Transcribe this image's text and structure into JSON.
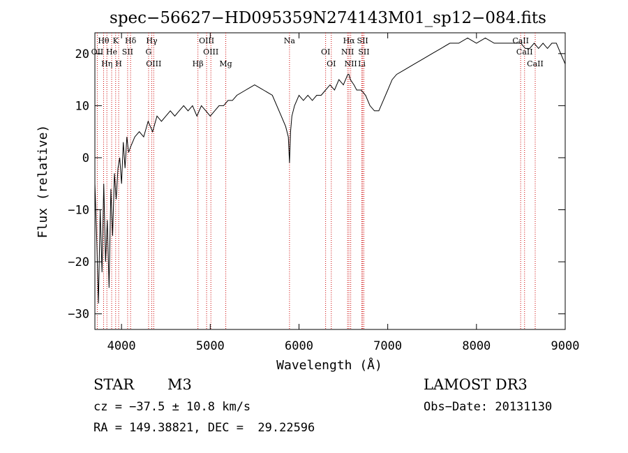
{
  "chart_data": {
    "type": "line",
    "title": "spec−56627−HD095359N274143M01_sp12−084.fits",
    "xlabel": "Wavelength (Å)",
    "ylabel": "Flux (relative)",
    "xlim": [
      3700,
      9000
    ],
    "ylim": [
      -33,
      24
    ],
    "xticks": [
      4000,
      5000,
      6000,
      7000,
      8000,
      9000
    ],
    "xtick_labels": [
      "4000",
      "5000",
      "6000",
      "7000",
      "8000",
      "9000"
    ],
    "yticks": [
      -30,
      -20,
      -10,
      0,
      10,
      20
    ],
    "ytick_labels": [
      "−30",
      "−20",
      "−10",
      "0",
      "10",
      "20"
    ],
    "grid": false,
    "line_color": "#000000",
    "marker_color": "#cc0000",
    "series": [
      {
        "x": [
          3700,
          3720,
          3740,
          3760,
          3780,
          3800,
          3820,
          3840,
          3860,
          3880,
          3900,
          3920,
          3940,
          3960,
          3980,
          4000,
          4020,
          4040,
          4060,
          4080,
          4100,
          4150,
          4200,
          4250,
          4300,
          4350,
          4400,
          4450,
          4500,
          4550,
          4600,
          4650,
          4700,
          4750,
          4800,
          4850,
          4900,
          4950,
          5000,
          5050,
          5100,
          5150,
          5200,
          5250,
          5300,
          5400,
          5500,
          5600,
          5700,
          5800,
          5850,
          5880,
          5893,
          5905,
          5920,
          5950,
          6000,
          6050,
          6100,
          6150,
          6200,
          6250,
          6300,
          6350,
          6400,
          6450,
          6500,
          6550,
          6563,
          6580,
          6620,
          6650,
          6700,
          6750,
          6800,
          6850,
          6900,
          6950,
          7000,
          7050,
          7100,
          7200,
          7300,
          7400,
          7500,
          7600,
          7700,
          7800,
          7900,
          8000,
          8100,
          8200,
          8300,
          8400,
          8500,
          8550,
          8600,
          8650,
          8700,
          8750,
          8800,
          8850,
          8900,
          8950,
          9000
        ],
        "y": [
          -5,
          -15,
          -28,
          -10,
          -22,
          -5,
          -20,
          -12,
          -25,
          -6,
          -15,
          -3,
          -8,
          -2,
          0,
          -5,
          3,
          -2,
          4,
          1,
          2,
          4,
          5,
          4,
          7,
          5,
          8,
          7,
          8,
          9,
          8,
          9,
          10,
          9,
          10,
          8,
          10,
          9,
          8,
          9,
          10,
          10,
          11,
          11,
          12,
          13,
          14,
          13,
          12,
          8,
          6,
          4,
          -1,
          5,
          8,
          10,
          12,
          11,
          12,
          11,
          12,
          12,
          13,
          14,
          13,
          15,
          14,
          16,
          16,
          15,
          14,
          13,
          13,
          12,
          10,
          9,
          9,
          11,
          13,
          15,
          16,
          17,
          18,
          19,
          20,
          21,
          22,
          22,
          23,
          22,
          23,
          22,
          22,
          22,
          22,
          21,
          21,
          22,
          21,
          22,
          21,
          22,
          22,
          20,
          18
        ]
      }
    ],
    "lines": [
      {
        "label": "Hθ",
        "x": 3798
      },
      {
        "label": "OII",
        "x": 3727
      },
      {
        "label": "Hη",
        "x": 3835
      },
      {
        "label": "K",
        "x": 3934
      },
      {
        "label": "He",
        "x": 3889
      },
      {
        "label": "H",
        "x": 3968
      },
      {
        "label": "Hδ",
        "x": 4102
      },
      {
        "label": "SII",
        "x": 4069
      },
      {
        "label": "OIII",
        "x": 4363
      },
      {
        "label": "Hγ",
        "x": 4341
      },
      {
        "label": "G",
        "x": 4305
      },
      {
        "label": "Hβ",
        "x": 4861
      },
      {
        "label": "OIII",
        "x": 4959
      },
      {
        "label": "OIII",
        "x": 5007
      },
      {
        "label": "Mg",
        "x": 5175
      },
      {
        "label": "Na",
        "x": 5893
      },
      {
        "label": "OI",
        "x": 6300
      },
      {
        "label": "OI",
        "x": 6364
      },
      {
        "label": "Hα",
        "x": 6563
      },
      {
        "label": "NII",
        "x": 6548
      },
      {
        "label": "NII",
        "x": 6583
      },
      {
        "label": "SII",
        "x": 6717
      },
      {
        "label": "SII",
        "x": 6731
      },
      {
        "label": "Li",
        "x": 6708
      },
      {
        "label": "CaII",
        "x": 8498
      },
      {
        "label": "CaII",
        "x": 8542
      },
      {
        "label": "CaII",
        "x": 8662
      }
    ]
  },
  "info": {
    "class_label": "STAR",
    "subclass": "M3",
    "survey": "LAMOST DR3",
    "redshift": "cz = −37.5 ± 10.8 km/s",
    "obs_date": "Obs−Date: 20131130",
    "coords": "RA = 149.38821, DEC =  29.22596"
  }
}
